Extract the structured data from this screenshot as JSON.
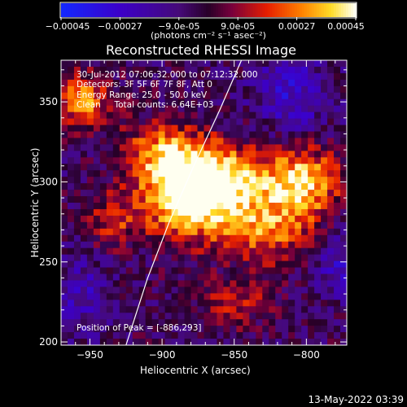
{
  "colorbar": {
    "ticks": [
      "-0.00045",
      "-0.00027",
      "-9.0e-05",
      "9.0e-05",
      "0.00027",
      "0.00045"
    ],
    "unit_label": "(photons cm⁻² s⁻¹ asec⁻²)",
    "range": [
      -0.00045,
      0.00045
    ]
  },
  "plot": {
    "title": "Reconstructed RHESSI Image",
    "info_lines": [
      "30-Jul-2012 07:06:32.000 to 07:12:32.000",
      "Detectors: 3F 5F 6F 7F 8F, Att 0",
      "Energy Range: 25.0 - 50.0 keV",
      "Clean     Total counts: 6.64E+03"
    ],
    "peak_text": "Position of Peak = [-886,293]",
    "footer_date": "13-May-2022 03:39"
  },
  "colors": {
    "background": "#000000",
    "axes": "#ffffff",
    "limb": "#ffffff"
  },
  "chart_data": {
    "type": "heatmap",
    "title": "Reconstructed RHESSI Image",
    "xlabel": "Heliocentric X (arcsec)",
    "ylabel": "Heliocentric Y (arcsec)",
    "xlim": [
      -970,
      -772
    ],
    "ylim": [
      198,
      376
    ],
    "x_ticks": [
      -950,
      -900,
      -850,
      -800
    ],
    "y_ticks": [
      200,
      250,
      300,
      350
    ],
    "x_tick_labels": [
      "−950",
      "−900",
      "−850",
      "−800"
    ],
    "y_tick_labels": [
      "200",
      "250",
      "300",
      "350"
    ],
    "colormap": "blue-purple-red-yellow-white",
    "peak": [
      -886,
      293
    ],
    "solar_limb": [
      [
        -925,
        198
      ],
      [
        -910,
        240
      ],
      [
        -895,
        275
      ],
      [
        -878,
        310
      ],
      [
        -860,
        345
      ],
      [
        -845,
        376
      ]
    ],
    "sources": [
      {
        "x": -886,
        "y": 293,
        "sx": 22,
        "sy": 18,
        "amp": 1.0
      },
      {
        "x": -860,
        "y": 300,
        "sx": 20,
        "sy": 15,
        "amp": 0.85
      },
      {
        "x": -805,
        "y": 300,
        "sx": 20,
        "sy": 15,
        "amp": 0.9
      },
      {
        "x": -830,
        "y": 270,
        "sx": 25,
        "sy": 14,
        "amp": 0.6
      },
      {
        "x": -900,
        "y": 320,
        "sx": 18,
        "sy": 12,
        "amp": 0.55
      },
      {
        "x": -955,
        "y": 350,
        "sx": 14,
        "sy": 12,
        "amp": 0.65
      },
      {
        "x": -935,
        "y": 275,
        "sx": 12,
        "sy": 12,
        "amp": 0.4
      },
      {
        "x": -850,
        "y": 225,
        "sx": 18,
        "sy": 10,
        "amp": 0.35
      }
    ],
    "negative_sources": [
      {
        "x": -810,
        "y": 355,
        "sx": 18,
        "sy": 18,
        "amp": -0.45
      },
      {
        "x": -780,
        "y": 250,
        "sx": 10,
        "sy": 15,
        "amp": -0.4
      },
      {
        "x": -955,
        "y": 230,
        "sx": 14,
        "sy": 18,
        "amp": -0.35
      }
    ]
  }
}
